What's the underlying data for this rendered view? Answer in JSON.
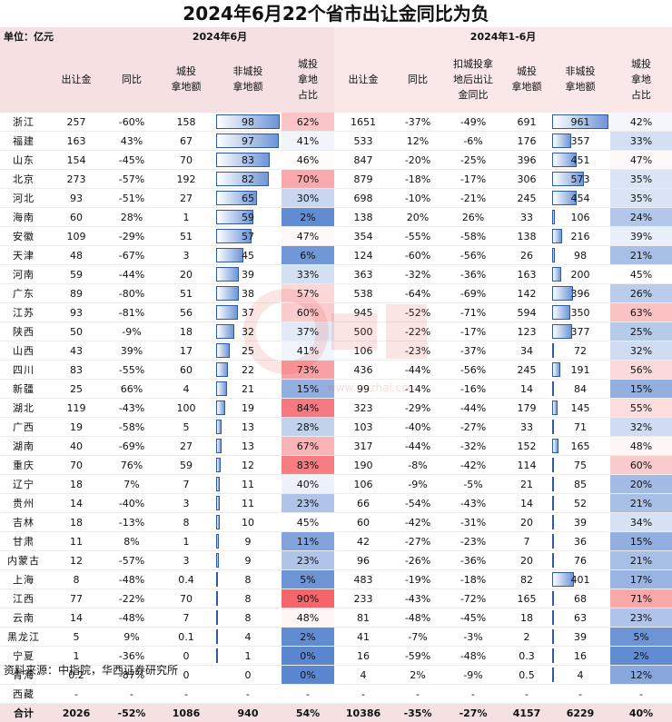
{
  "title": "2024年6月22个省市出让金同比为负",
  "header": {
    "unit": "单位：亿元",
    "group_june": "2024年6月",
    "group_ytd": "2024年1-6月",
    "columns": [
      "",
      "出让金",
      "同比",
      "城投\n拿地额",
      "非城投\n拿地额",
      "城投\n拿地\n占比",
      "出让金",
      "同比",
      "扣城投拿\n地后出让\n金同比",
      "城投\n拿地额",
      "非城投\n拿地额",
      "城投\n拿地\n占比"
    ]
  },
  "chart_data": {
    "type": "table",
    "rows": [
      {
        "province": "浙江",
        "jun_rev": "257",
        "jun_yoy": "-60%",
        "jun_ct": "158",
        "jun_nonct": "98",
        "jun_share": "62%",
        "ytd_rev": "1651",
        "ytd_yoy": "-37%",
        "ytd_adj": "-49%",
        "ytd_ct": "691",
        "ytd_nonct": "961",
        "ytd_share": "42%"
      },
      {
        "province": "福建",
        "jun_rev": "163",
        "jun_yoy": "43%",
        "jun_ct": "67",
        "jun_nonct": "97",
        "jun_share": "41%",
        "ytd_rev": "533",
        "ytd_yoy": "12%",
        "ytd_adj": "-6%",
        "ytd_ct": "176",
        "ytd_nonct": "357",
        "ytd_share": "33%"
      },
      {
        "province": "山东",
        "jun_rev": "154",
        "jun_yoy": "-45%",
        "jun_ct": "70",
        "jun_nonct": "83",
        "jun_share": "46%",
        "ytd_rev": "847",
        "ytd_yoy": "-20%",
        "ytd_adj": "-25%",
        "ytd_ct": "396",
        "ytd_nonct": "451",
        "ytd_share": "47%"
      },
      {
        "province": "北京",
        "jun_rev": "273",
        "jun_yoy": "-57%",
        "jun_ct": "192",
        "jun_nonct": "82",
        "jun_share": "70%",
        "ytd_rev": "879",
        "ytd_yoy": "-18%",
        "ytd_adj": "-17%",
        "ytd_ct": "306",
        "ytd_nonct": "573",
        "ytd_share": "35%"
      },
      {
        "province": "河北",
        "jun_rev": "93",
        "jun_yoy": "-51%",
        "jun_ct": "27",
        "jun_nonct": "65",
        "jun_share": "30%",
        "ytd_rev": "698",
        "ytd_yoy": "-10%",
        "ytd_adj": "-21%",
        "ytd_ct": "245",
        "ytd_nonct": "454",
        "ytd_share": "35%"
      },
      {
        "province": "海南",
        "jun_rev": "60",
        "jun_yoy": "28%",
        "jun_ct": "1",
        "jun_nonct": "59",
        "jun_share": "2%",
        "ytd_rev": "138",
        "ytd_yoy": "20%",
        "ytd_adj": "26%",
        "ytd_ct": "33",
        "ytd_nonct": "106",
        "ytd_share": "24%"
      },
      {
        "province": "安徽",
        "jun_rev": "109",
        "jun_yoy": "-29%",
        "jun_ct": "51",
        "jun_nonct": "57",
        "jun_share": "47%",
        "ytd_rev": "354",
        "ytd_yoy": "-55%",
        "ytd_adj": "-58%",
        "ytd_ct": "138",
        "ytd_nonct": "216",
        "ytd_share": "39%"
      },
      {
        "province": "天津",
        "jun_rev": "48",
        "jun_yoy": "-67%",
        "jun_ct": "3",
        "jun_nonct": "45",
        "jun_share": "6%",
        "ytd_rev": "124",
        "ytd_yoy": "-60%",
        "ytd_adj": "-56%",
        "ytd_ct": "26",
        "ytd_nonct": "98",
        "ytd_share": "21%"
      },
      {
        "province": "河南",
        "jun_rev": "59",
        "jun_yoy": "-44%",
        "jun_ct": "20",
        "jun_nonct": "39",
        "jun_share": "33%",
        "ytd_rev": "363",
        "ytd_yoy": "-32%",
        "ytd_adj": "-36%",
        "ytd_ct": "163",
        "ytd_nonct": "200",
        "ytd_share": "45%"
      },
      {
        "province": "广东",
        "jun_rev": "89",
        "jun_yoy": "-80%",
        "jun_ct": "51",
        "jun_nonct": "38",
        "jun_share": "57%",
        "ytd_rev": "538",
        "ytd_yoy": "-64%",
        "ytd_adj": "-69%",
        "ytd_ct": "142",
        "ytd_nonct": "396",
        "ytd_share": "26%"
      },
      {
        "province": "江苏",
        "jun_rev": "93",
        "jun_yoy": "-81%",
        "jun_ct": "56",
        "jun_nonct": "37",
        "jun_share": "60%",
        "ytd_rev": "945",
        "ytd_yoy": "-52%",
        "ytd_adj": "-71%",
        "ytd_ct": "594",
        "ytd_nonct": "350",
        "ytd_share": "63%"
      },
      {
        "province": "陕西",
        "jun_rev": "50",
        "jun_yoy": "-9%",
        "jun_ct": "18",
        "jun_nonct": "32",
        "jun_share": "37%",
        "ytd_rev": "500",
        "ytd_yoy": "-22%",
        "ytd_adj": "-17%",
        "ytd_ct": "123",
        "ytd_nonct": "377",
        "ytd_share": "25%"
      },
      {
        "province": "山西",
        "jun_rev": "43",
        "jun_yoy": "39%",
        "jun_ct": "17",
        "jun_nonct": "25",
        "jun_share": "41%",
        "ytd_rev": "106",
        "ytd_yoy": "-23%",
        "ytd_adj": "-37%",
        "ytd_ct": "34",
        "ytd_nonct": "72",
        "ytd_share": "32%"
      },
      {
        "province": "四川",
        "jun_rev": "83",
        "jun_yoy": "-55%",
        "jun_ct": "60",
        "jun_nonct": "22",
        "jun_share": "73%",
        "ytd_rev": "436",
        "ytd_yoy": "-44%",
        "ytd_adj": "-56%",
        "ytd_ct": "245",
        "ytd_nonct": "191",
        "ytd_share": "56%"
      },
      {
        "province": "新疆",
        "jun_rev": "25",
        "jun_yoy": "66%",
        "jun_ct": "4",
        "jun_nonct": "21",
        "jun_share": "15%",
        "ytd_rev": "99",
        "ytd_yoy": "-14%",
        "ytd_adj": "-16%",
        "ytd_ct": "14",
        "ytd_nonct": "84",
        "ytd_share": "15%"
      },
      {
        "province": "湖北",
        "jun_rev": "119",
        "jun_yoy": "-43%",
        "jun_ct": "100",
        "jun_nonct": "19",
        "jun_share": "84%",
        "ytd_rev": "323",
        "ytd_yoy": "-29%",
        "ytd_adj": "-44%",
        "ytd_ct": "179",
        "ytd_nonct": "145",
        "ytd_share": "55%"
      },
      {
        "province": "广西",
        "jun_rev": "19",
        "jun_yoy": "-58%",
        "jun_ct": "5",
        "jun_nonct": "13",
        "jun_share": "28%",
        "ytd_rev": "103",
        "ytd_yoy": "-40%",
        "ytd_adj": "-27%",
        "ytd_ct": "33",
        "ytd_nonct": "71",
        "ytd_share": "32%"
      },
      {
        "province": "湖南",
        "jun_rev": "40",
        "jun_yoy": "-69%",
        "jun_ct": "27",
        "jun_nonct": "13",
        "jun_share": "67%",
        "ytd_rev": "317",
        "ytd_yoy": "-44%",
        "ytd_adj": "-32%",
        "ytd_ct": "152",
        "ytd_nonct": "165",
        "ytd_share": "48%"
      },
      {
        "province": "重庆",
        "jun_rev": "70",
        "jun_yoy": "76%",
        "jun_ct": "59",
        "jun_nonct": "12",
        "jun_share": "83%",
        "ytd_rev": "190",
        "ytd_yoy": "-8%",
        "ytd_adj": "-42%",
        "ytd_ct": "114",
        "ytd_nonct": "75",
        "ytd_share": "60%"
      },
      {
        "province": "辽宁",
        "jun_rev": "18",
        "jun_yoy": "7%",
        "jun_ct": "7",
        "jun_nonct": "11",
        "jun_share": "40%",
        "ytd_rev": "106",
        "ytd_yoy": "-9%",
        "ytd_adj": "-5%",
        "ytd_ct": "21",
        "ytd_nonct": "85",
        "ytd_share": "20%"
      },
      {
        "province": "贵州",
        "jun_rev": "14",
        "jun_yoy": "-40%",
        "jun_ct": "3",
        "jun_nonct": "11",
        "jun_share": "23%",
        "ytd_rev": "66",
        "ytd_yoy": "-54%",
        "ytd_adj": "-43%",
        "ytd_ct": "14",
        "ytd_nonct": "52",
        "ytd_share": "21%"
      },
      {
        "province": "吉林",
        "jun_rev": "18",
        "jun_yoy": "-13%",
        "jun_ct": "8",
        "jun_nonct": "10",
        "jun_share": "45%",
        "ytd_rev": "60",
        "ytd_yoy": "-42%",
        "ytd_adj": "-31%",
        "ytd_ct": "20",
        "ytd_nonct": "39",
        "ytd_share": "34%"
      },
      {
        "province": "甘肃",
        "jun_rev": "11",
        "jun_yoy": "8%",
        "jun_ct": "1",
        "jun_nonct": "9",
        "jun_share": "11%",
        "ytd_rev": "42",
        "ytd_yoy": "-27%",
        "ytd_adj": "-23%",
        "ytd_ct": "7",
        "ytd_nonct": "36",
        "ytd_share": "15%"
      },
      {
        "province": "内蒙古",
        "jun_rev": "12",
        "jun_yoy": "-57%",
        "jun_ct": "3",
        "jun_nonct": "9",
        "jun_share": "23%",
        "ytd_rev": "96",
        "ytd_yoy": "-26%",
        "ytd_adj": "-36%",
        "ytd_ct": "20",
        "ytd_nonct": "76",
        "ytd_share": "21%"
      },
      {
        "province": "上海",
        "jun_rev": "8",
        "jun_yoy": "-48%",
        "jun_ct": "0.4",
        "jun_nonct": "8",
        "jun_share": "5%",
        "ytd_rev": "483",
        "ytd_yoy": "-19%",
        "ytd_adj": "-18%",
        "ytd_ct": "82",
        "ytd_nonct": "401",
        "ytd_share": "17%"
      },
      {
        "province": "江西",
        "jun_rev": "77",
        "jun_yoy": "-22%",
        "jun_ct": "70",
        "jun_nonct": "8",
        "jun_share": "90%",
        "ytd_rev": "233",
        "ytd_yoy": "-43%",
        "ytd_adj": "-72%",
        "ytd_ct": "165",
        "ytd_nonct": "68",
        "ytd_share": "71%"
      },
      {
        "province": "云南",
        "jun_rev": "14",
        "jun_yoy": "-48%",
        "jun_ct": "7",
        "jun_nonct": "8",
        "jun_share": "48%",
        "ytd_rev": "81",
        "ytd_yoy": "-48%",
        "ytd_adj": "-45%",
        "ytd_ct": "18",
        "ytd_nonct": "63",
        "ytd_share": "23%"
      },
      {
        "province": "黑龙江",
        "jun_rev": "5",
        "jun_yoy": "9%",
        "jun_ct": "0.1",
        "jun_nonct": "4",
        "jun_share": "2%",
        "ytd_rev": "41",
        "ytd_yoy": "-7%",
        "ytd_adj": "-3%",
        "ytd_ct": "2",
        "ytd_nonct": "39",
        "ytd_share": "5%"
      },
      {
        "province": "宁夏",
        "jun_rev": "1",
        "jun_yoy": "-36%",
        "jun_ct": "0",
        "jun_nonct": "1",
        "jun_share": "0%",
        "ytd_rev": "16",
        "ytd_yoy": "-59%",
        "ytd_adj": "-48%",
        "ytd_ct": "0.3",
        "ytd_nonct": "16",
        "ytd_share": "2%"
      },
      {
        "province": "青海",
        "jun_rev": "0.2",
        "jun_yoy": "-87%",
        "jun_ct": "0",
        "jun_nonct": "0",
        "jun_share": "0%",
        "ytd_rev": "4",
        "ytd_yoy": "2%",
        "ytd_adj": "-9%",
        "ytd_ct": "0.5",
        "ytd_nonct": "4",
        "ytd_share": "12%"
      },
      {
        "province": "西藏",
        "jun_rev": "-",
        "jun_yoy": "-",
        "jun_ct": "-",
        "jun_nonct": "-",
        "jun_share": "-",
        "ytd_rev": "-",
        "ytd_yoy": "-",
        "ytd_adj": "-",
        "ytd_ct": "-",
        "ytd_nonct": "-",
        "ytd_share": "-"
      }
    ],
    "total": {
      "province": "合计",
      "jun_rev": "2026",
      "jun_yoy": "-52%",
      "jun_ct": "1086",
      "jun_nonct": "940",
      "jun_share": "54%",
      "ytd_rev": "10386",
      "ytd_yoy": "-35%",
      "ytd_adj": "-27%",
      "ytd_ct": "4157",
      "ytd_nonct": "6229",
      "ytd_share": "40%"
    },
    "bar_max": {
      "jun_nonct": 98,
      "ytd_nonct": 961
    },
    "colors": {
      "bar_fill": "#6e95d6",
      "bar_border": "#2f5aa8",
      "low_share": "#5b87d0",
      "mid_share": "#ffffff",
      "high_share": "#f4666b",
      "header_bg": "#f5e1e1"
    }
  },
  "footer": {
    "source": "资料来源：中指院，华西证券研究所"
  },
  "watermark": {
    "text": "米宅",
    "url": "www.mizhai.com"
  }
}
